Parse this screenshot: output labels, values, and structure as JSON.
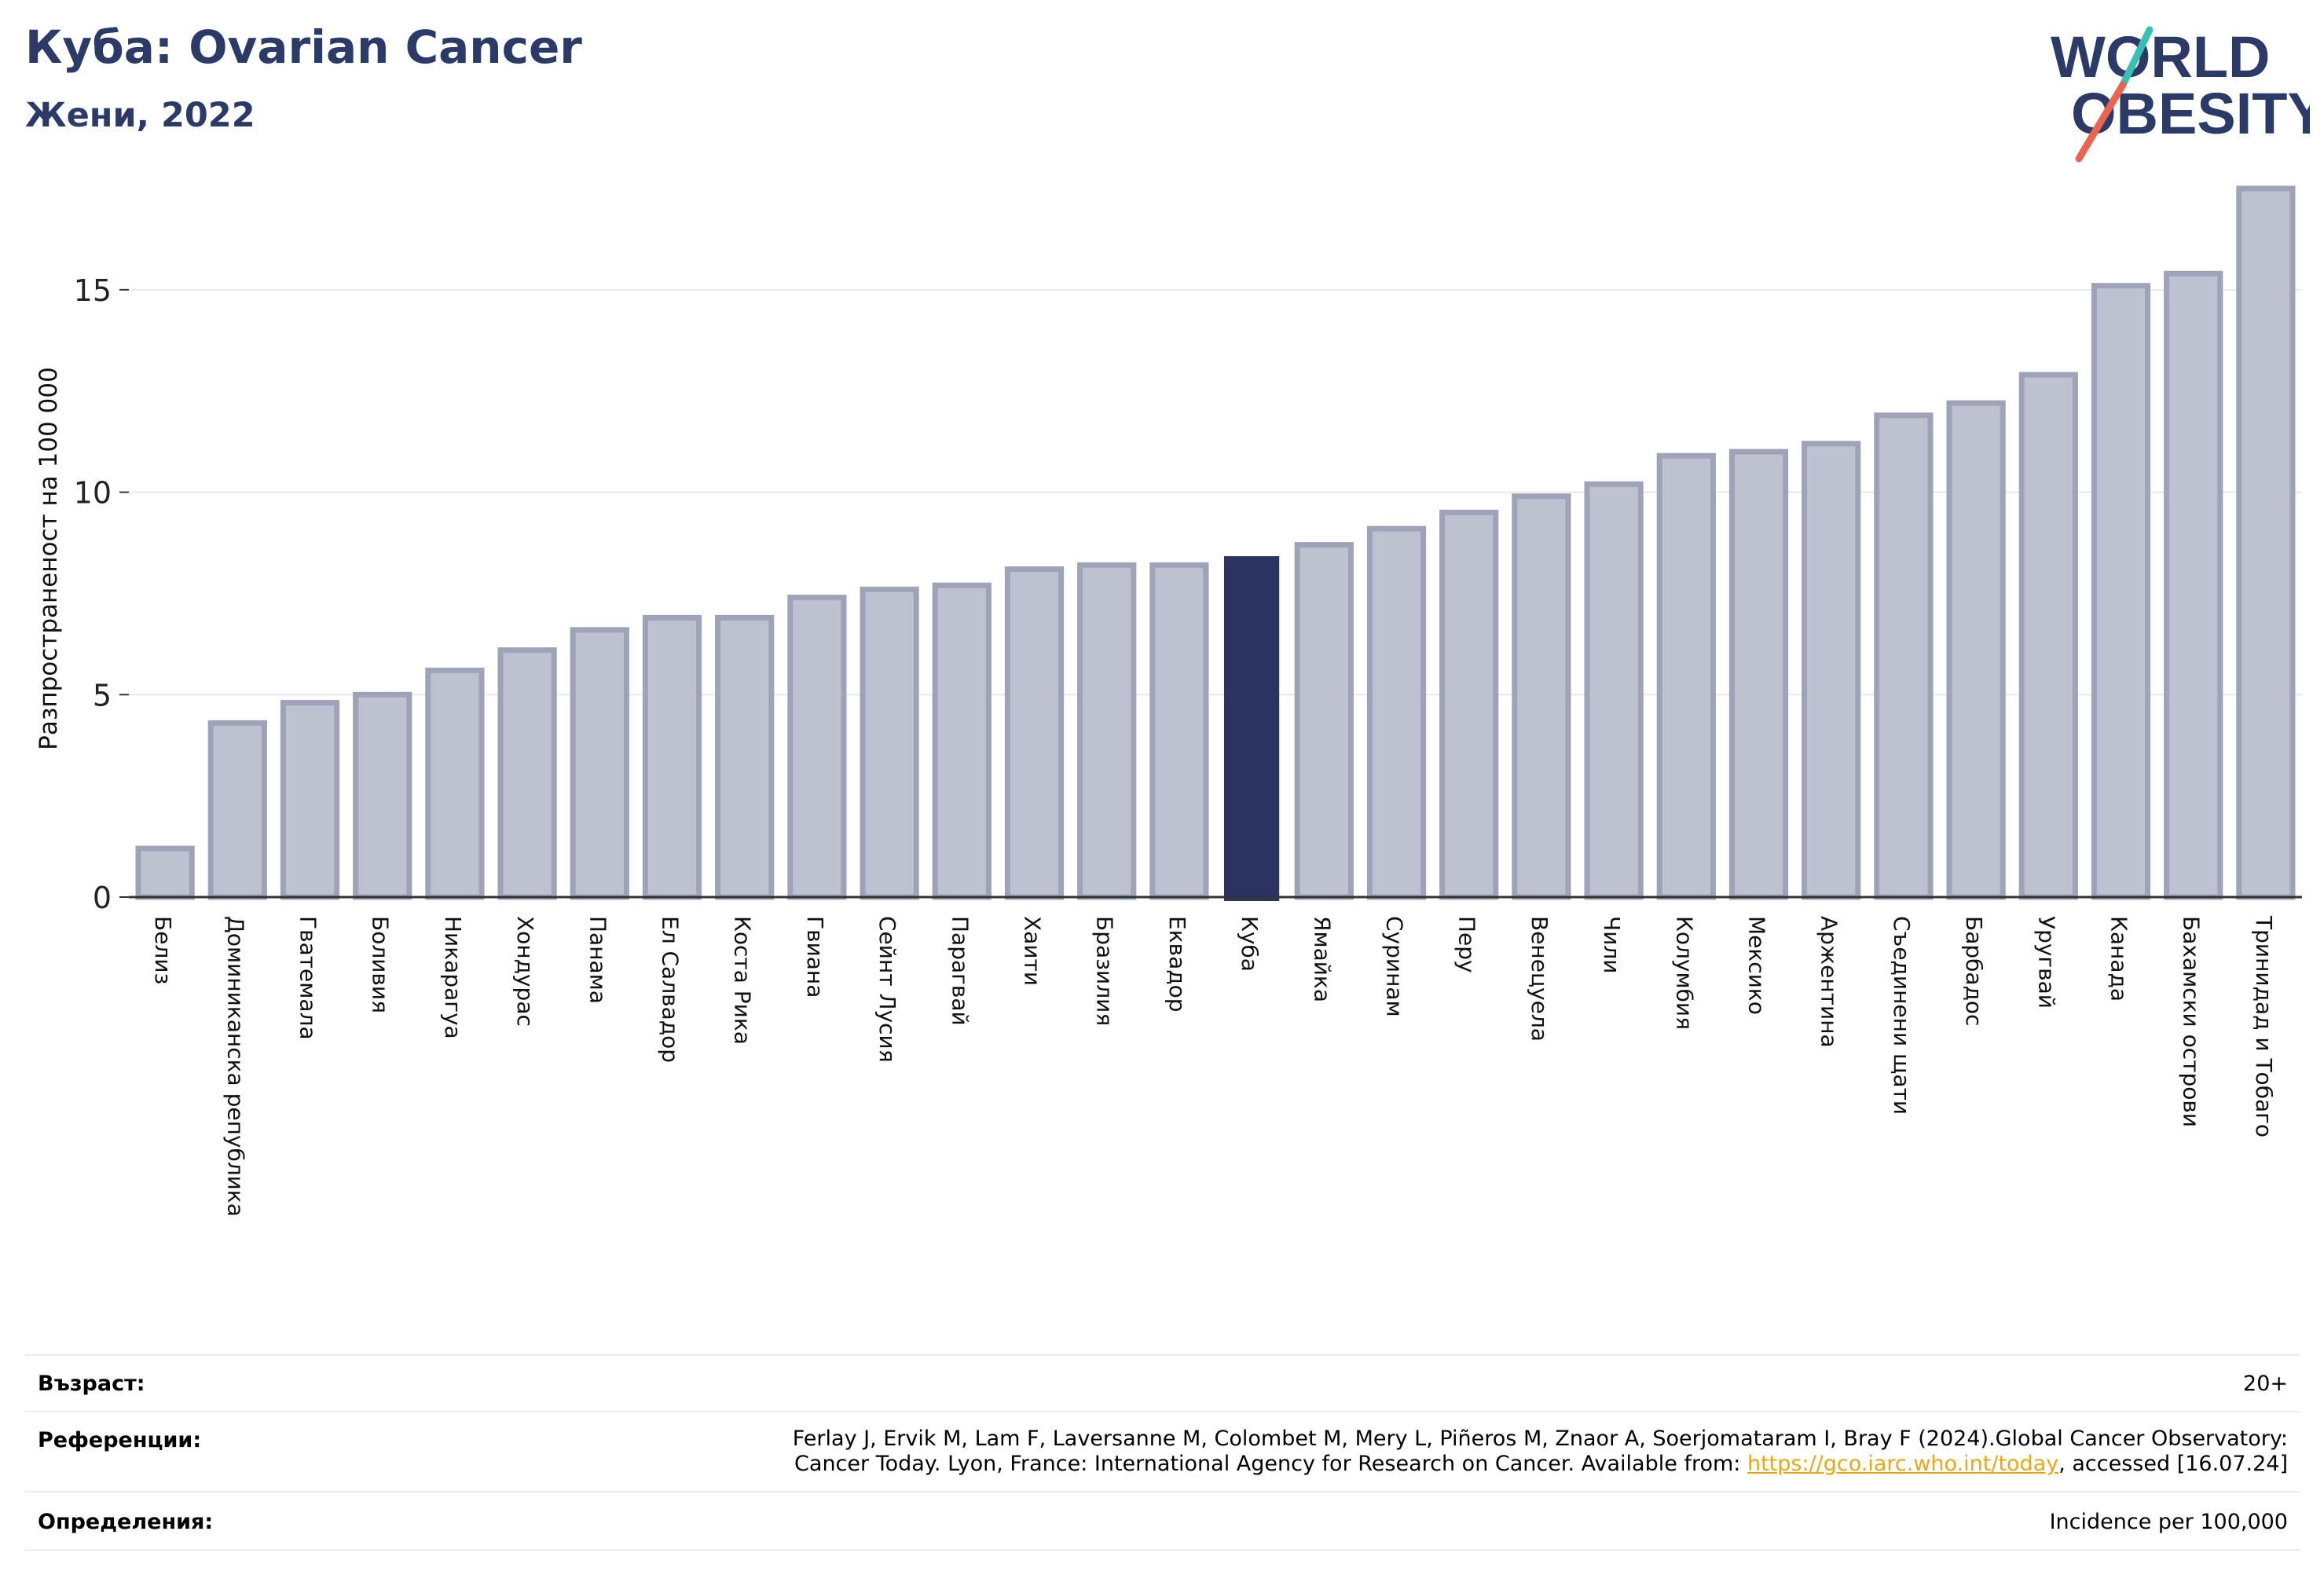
{
  "header": {
    "title": "Куба: Ovarian Cancer",
    "subtitle": "Жени, 2022"
  },
  "logo": {
    "line1": "WORLD",
    "line2": "OBESITY",
    "colors": {
      "text": "#2b3a67",
      "slash_teal": "#3bbfb5",
      "slash_red": "#e8654f"
    }
  },
  "chart_data": {
    "type": "bar",
    "ylabel": "Разпространеност  на 100 000",
    "ylim": [
      0,
      17.5
    ],
    "yticks": [
      0,
      5,
      10,
      15
    ],
    "grid": true,
    "highlight": "Куба",
    "colors": {
      "bar": "#bec1d0",
      "bar_edge": "#9ea3b8",
      "highlight": "#2b3461",
      "axis": "#333333",
      "grid": "#e8e8ee"
    },
    "categories": [
      "Белиз",
      "Доминиканска република",
      "Гватемала",
      "Боливия",
      "Никарагуа",
      "Хондурас",
      "Панама",
      "Ел Салвадор",
      "Коста Рика",
      "Гвиана",
      "Сейнт Лусия",
      "Парагвай",
      "Хаити",
      "Бразилия",
      "Еквадор",
      "Куба",
      "Ямайка",
      "Суринам",
      "Перу",
      "Венецуела",
      "Чили",
      "Колумбия",
      "Мексико",
      "Аржентина",
      "Съединени щати",
      "Барбадос",
      "Уругвай",
      "Канада",
      "Бахамски острови",
      "Тринидад и Тобаго"
    ],
    "values": [
      1.2,
      4.3,
      4.8,
      5.0,
      5.6,
      6.1,
      6.6,
      6.9,
      6.9,
      7.4,
      7.6,
      7.7,
      8.1,
      8.2,
      8.2,
      8.4,
      8.7,
      9.1,
      9.5,
      9.9,
      10.2,
      10.9,
      11.0,
      11.2,
      11.9,
      12.2,
      12.9,
      15.1,
      15.4,
      17.5
    ]
  },
  "footer": {
    "age_label": "Възраст:",
    "age_value": "20+",
    "ref_label": "Референции:",
    "ref_line1": "Ferlay J, Ervik M, Lam F, Laversanne M, Colombet M, Mery L, Piñeros M, Znaor A, Soerjomataram I, Bray F (2024).Global Cancer Observatory:",
    "ref_line2_pre": "Cancer Today. Lyon, France: International Agency for Research on Cancer. Available from: ",
    "ref_link": "https://gco.iarc.who.int/today",
    "ref_line2_post": ", accessed [16.07.24]",
    "def_label": "Определения:",
    "def_value": "Incidence per 100,000"
  }
}
